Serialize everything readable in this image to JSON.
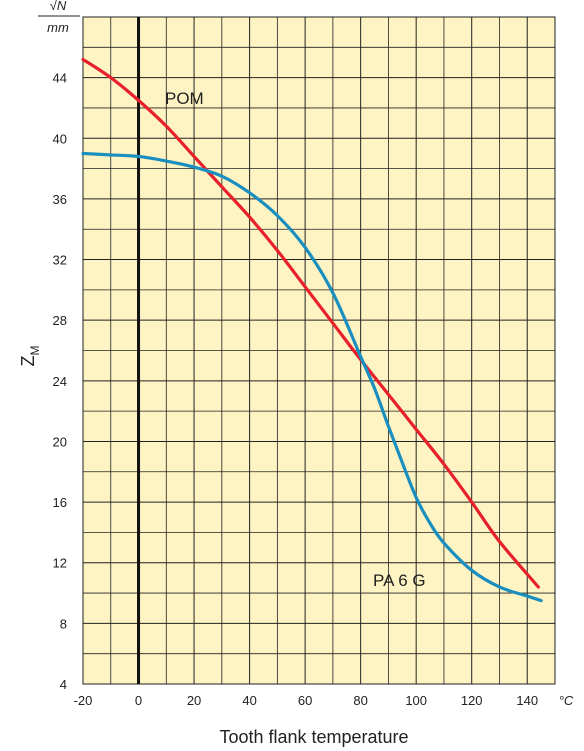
{
  "chart_data": {
    "type": "line",
    "title": "",
    "xlabel": "Tooth flank temperature",
    "x_unit": "°C",
    "ylabel": "Z",
    "ylabel_subscript": "M",
    "y_unit_numerator": "√N",
    "y_unit_denominator": "mm",
    "xlim": [
      -20,
      150
    ],
    "ylim": [
      4,
      48
    ],
    "x_ticks": [
      -20,
      0,
      20,
      40,
      60,
      80,
      100,
      120,
      140
    ],
    "y_ticks": [
      4,
      8,
      12,
      16,
      20,
      24,
      28,
      32,
      36,
      40,
      44
    ],
    "x_minor_step": 10,
    "y_minor_step": 2,
    "grid": true,
    "background": "#fdf3c3",
    "series": [
      {
        "name": "POM",
        "color": "#e8202a",
        "points": [
          [
            -20,
            45.2
          ],
          [
            -10,
            44.0
          ],
          [
            0,
            42.5
          ],
          [
            10,
            40.8
          ],
          [
            20,
            38.8
          ],
          [
            30,
            36.8
          ],
          [
            40,
            34.8
          ],
          [
            50,
            32.6
          ],
          [
            60,
            30.2
          ],
          [
            70,
            27.8
          ],
          [
            80,
            25.4
          ],
          [
            90,
            23.1
          ],
          [
            100,
            20.8
          ],
          [
            110,
            18.5
          ],
          [
            120,
            16.0
          ],
          [
            130,
            13.4
          ],
          [
            144,
            10.4
          ]
        ]
      },
      {
        "name": "PA 6 G",
        "color": "#1a8fbf",
        "points": [
          [
            -20,
            39.0
          ],
          [
            -10,
            38.9
          ],
          [
            0,
            38.8
          ],
          [
            10,
            38.5
          ],
          [
            20,
            38.1
          ],
          [
            30,
            37.5
          ],
          [
            40,
            36.4
          ],
          [
            50,
            34.9
          ],
          [
            60,
            32.8
          ],
          [
            70,
            29.8
          ],
          [
            80,
            25.6
          ],
          [
            85,
            23.5
          ],
          [
            90,
            21.0
          ],
          [
            95,
            18.6
          ],
          [
            100,
            16.3
          ],
          [
            105,
            14.6
          ],
          [
            110,
            13.3
          ],
          [
            120,
            11.5
          ],
          [
            130,
            10.4
          ],
          [
            140,
            9.8
          ],
          [
            145,
            9.5
          ]
        ]
      }
    ]
  }
}
